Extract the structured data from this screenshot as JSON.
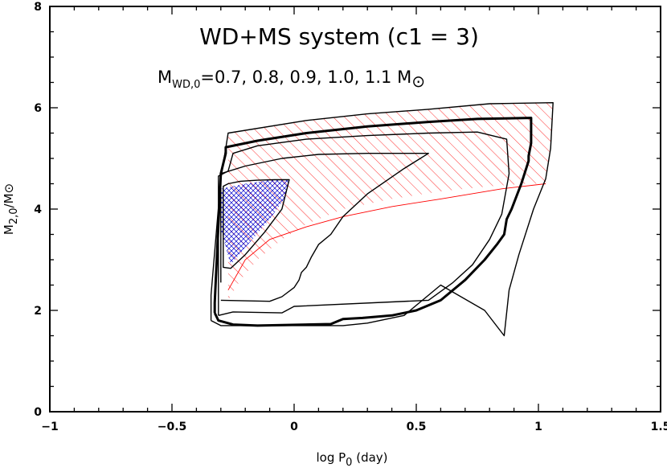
{
  "chart_data": {
    "type": "line",
    "title": "WD+MS system (c1 = 3)",
    "subtitle": {
      "prefix": "M",
      "sub": "WD,0",
      "values": "=0.7, 0.8, 0.9, 1.0, 1.1 M",
      "unit_symbol": "⊙"
    },
    "xlabel": {
      "main": "log P",
      "sub": "0",
      "unit": " (day)"
    },
    "ylabel": {
      "main": "M",
      "sub": "2,0",
      "unit": "/M⊙"
    },
    "xlim": [
      -1,
      1.5
    ],
    "ylim": [
      0,
      8
    ],
    "xticks": [
      -1,
      -0.5,
      0,
      0.5,
      1,
      1.5
    ],
    "xtick_labels": [
      "−1",
      "−0.5",
      "0",
      "0.5",
      "1",
      "1.5"
    ],
    "yticks": [
      0,
      2,
      4,
      6,
      8
    ],
    "ytick_labels": [
      "0",
      "2",
      "4",
      "6",
      "8"
    ],
    "series": [
      {
        "line_width": 1.4,
        "color": "#000000",
        "points": [
          [
            -0.29,
            3.05
          ],
          [
            -0.29,
            4.45
          ],
          [
            -0.27,
            4.5
          ],
          [
            -0.22,
            4.55
          ],
          [
            -0.15,
            4.57
          ],
          [
            -0.08,
            4.58
          ],
          [
            -0.02,
            4.58
          ],
          [
            -0.05,
            4.0
          ],
          [
            -0.12,
            3.55
          ],
          [
            -0.2,
            3.1
          ],
          [
            -0.26,
            2.83
          ],
          [
            -0.29,
            2.85
          ],
          [
            -0.29,
            3.05
          ]
        ]
      },
      {
        "line_width": 1.4,
        "color": "#000000",
        "points": [
          [
            -0.3,
            2.55
          ],
          [
            -0.3,
            4.7
          ],
          [
            -0.2,
            4.85
          ],
          [
            -0.05,
            5.0
          ],
          [
            0.1,
            5.08
          ],
          [
            0.3,
            5.1
          ],
          [
            0.55,
            5.1
          ],
          [
            0.45,
            4.8
          ],
          [
            0.3,
            4.3
          ],
          [
            0.2,
            3.85
          ],
          [
            0.15,
            3.5
          ],
          [
            0.1,
            3.3
          ],
          [
            0.07,
            3.05
          ],
          [
            0.05,
            2.85
          ],
          [
            0.03,
            2.75
          ],
          [
            0.02,
            2.6
          ],
          [
            0.0,
            2.45
          ],
          [
            -0.05,
            2.27
          ],
          [
            -0.1,
            2.18
          ],
          [
            -0.3,
            2.2
          ]
        ]
      },
      {
        "line_width": 1.4,
        "color": "#000000",
        "points": [
          [
            -0.31,
            1.9
          ],
          [
            -0.31,
            4.65
          ],
          [
            -0.27,
            4.75
          ],
          [
            -0.25,
            5.1
          ],
          [
            -0.15,
            5.25
          ],
          [
            0.05,
            5.38
          ],
          [
            0.3,
            5.45
          ],
          [
            0.55,
            5.5
          ],
          [
            0.75,
            5.52
          ],
          [
            0.87,
            5.38
          ],
          [
            0.88,
            4.7
          ],
          [
            0.85,
            3.9
          ],
          [
            0.8,
            3.4
          ],
          [
            0.73,
            2.9
          ],
          [
            0.65,
            2.55
          ],
          [
            0.55,
            2.2
          ],
          [
            0.0,
            2.08
          ],
          [
            -0.05,
            1.95
          ],
          [
            -0.25,
            1.97
          ],
          [
            -0.31,
            1.9
          ]
        ]
      },
      {
        "line_width": 3,
        "color": "#000000",
        "points": [
          [
            -0.325,
            1.95
          ],
          [
            -0.325,
            2.15
          ],
          [
            -0.3,
            4.7
          ],
          [
            -0.28,
            5.1
          ],
          [
            -0.28,
            5.22
          ],
          [
            -0.15,
            5.35
          ],
          [
            0.05,
            5.5
          ],
          [
            0.3,
            5.63
          ],
          [
            0.55,
            5.72
          ],
          [
            0.75,
            5.78
          ],
          [
            0.97,
            5.8
          ],
          [
            0.97,
            5.3
          ],
          [
            0.96,
            5.05
          ],
          [
            0.96,
            4.95
          ],
          [
            0.93,
            4.5
          ],
          [
            0.89,
            4.0
          ],
          [
            0.87,
            3.8
          ],
          [
            0.86,
            3.5
          ],
          [
            0.83,
            3.3
          ],
          [
            0.78,
            3.0
          ],
          [
            0.7,
            2.6
          ],
          [
            0.6,
            2.2
          ],
          [
            0.5,
            2.0
          ],
          [
            0.4,
            1.9
          ],
          [
            0.28,
            1.85
          ],
          [
            0.2,
            1.83
          ],
          [
            0.15,
            1.73
          ],
          [
            -0.15,
            1.7
          ],
          [
            -0.25,
            1.72
          ],
          [
            -0.31,
            1.8
          ],
          [
            -0.325,
            1.95
          ]
        ]
      },
      {
        "line_width": 1.4,
        "color": "#000000",
        "points": [
          [
            -0.34,
            1.8
          ],
          [
            -0.34,
            2.3
          ],
          [
            -0.3,
            4.6
          ],
          [
            -0.28,
            5.2
          ],
          [
            -0.27,
            5.5
          ],
          [
            0.05,
            5.75
          ],
          [
            0.3,
            5.88
          ],
          [
            0.55,
            5.97
          ],
          [
            0.8,
            6.08
          ],
          [
            1.06,
            6.1
          ],
          [
            1.05,
            5.2
          ],
          [
            1.03,
            4.6
          ],
          [
            0.98,
            4.0
          ],
          [
            0.92,
            3.1
          ],
          [
            0.88,
            2.4
          ],
          [
            0.86,
            1.5
          ],
          [
            0.78,
            2.0
          ],
          [
            0.6,
            2.5
          ],
          [
            0.45,
            1.9
          ],
          [
            0.3,
            1.75
          ],
          [
            0.2,
            1.7
          ],
          [
            -0.3,
            1.7
          ],
          [
            -0.34,
            1.8
          ]
        ]
      }
    ],
    "region_red": [
      [
        -0.27,
        2.2
      ],
      [
        -0.27,
        5.5
      ],
      [
        0.05,
        5.75
      ],
      [
        0.3,
        5.88
      ],
      [
        0.55,
        5.97
      ],
      [
        0.8,
        6.08
      ],
      [
        1.06,
        6.1
      ],
      [
        1.05,
        5.2
      ],
      [
        1.03,
        4.5
      ],
      [
        0.95,
        4.5
      ],
      [
        0.8,
        4.45
      ],
      [
        0.6,
        4.35
      ],
      [
        0.4,
        4.2
      ],
      [
        0.2,
        4.0
      ],
      [
        0.05,
        3.7
      ],
      [
        -0.05,
        3.4
      ],
      [
        -0.15,
        3.0
      ],
      [
        -0.22,
        2.6
      ],
      [
        -0.27,
        2.2
      ]
    ],
    "region_red_boundary": [
      [
        -0.27,
        2.4
      ],
      [
        -0.2,
        3.0
      ],
      [
        -0.1,
        3.4
      ],
      [
        0.05,
        3.65
      ],
      [
        0.2,
        3.85
      ],
      [
        0.4,
        4.05
      ],
      [
        0.6,
        4.2
      ],
      [
        0.85,
        4.4
      ],
      [
        1.03,
        4.5
      ]
    ],
    "region_blue": [
      [
        -0.3,
        3.6
      ],
      [
        -0.3,
        4.4
      ],
      [
        -0.2,
        4.5
      ],
      [
        -0.1,
        4.57
      ],
      [
        -0.02,
        4.58
      ],
      [
        -0.04,
        4.2
      ],
      [
        -0.1,
        3.8
      ],
      [
        -0.18,
        3.35
      ],
      [
        -0.26,
        2.9
      ],
      [
        -0.3,
        3.6
      ]
    ],
    "colors": {
      "red": "#ff0000",
      "blue": "#0000cc",
      "axis": "#000000"
    }
  }
}
